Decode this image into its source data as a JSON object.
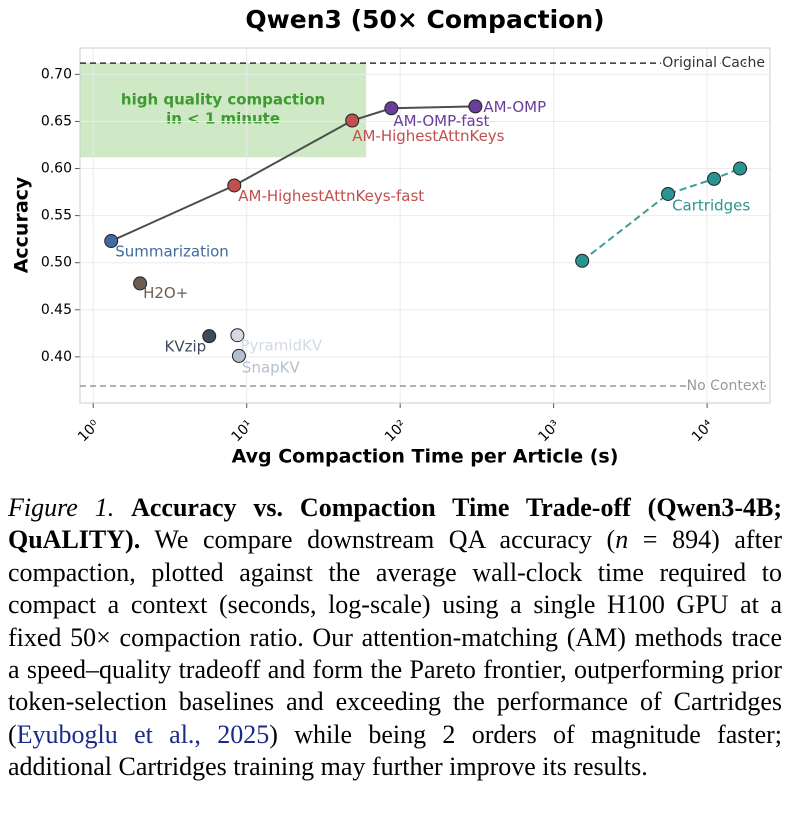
{
  "chart_data": {
    "type": "scatter",
    "title": "Qwen3 (50× Compaction)",
    "x_label": "Avg Compaction Time per Article (s)",
    "y_label": "Accuracy",
    "x_log": true,
    "grid": true,
    "xlim": [
      0.82,
      25700
    ],
    "ylim": [
      0.351,
      0.728
    ],
    "xticks": [
      {
        "value": 1,
        "label": "10⁰"
      },
      {
        "value": 10,
        "label": "10¹"
      },
      {
        "value": 100,
        "label": "10²"
      },
      {
        "value": 1000,
        "label": "10³"
      },
      {
        "value": 10000,
        "label": "10⁴"
      }
    ],
    "yticks": [
      {
        "value": 0.4,
        "label": "0.40"
      },
      0.45,
      {
        "value": 0.5,
        "label": "0.50"
      },
      0.55,
      {
        "value": 0.6,
        "label": "0.60"
      },
      0.65,
      {
        "value": 0.7,
        "label": "0.70"
      }
    ],
    "hlines": [
      {
        "y": 0.712,
        "label": "Original Cache",
        "color": "#333333"
      },
      {
        "y": 0.369,
        "label": "No Context",
        "color": "#999999"
      }
    ],
    "shaded_region": {
      "x": [
        0.82,
        60
      ],
      "y": [
        0.612,
        0.712
      ],
      "color": "#cfe8c6",
      "text_color": "#3c9a2e",
      "label": [
        "high quality compaction",
        "in < 1 minute"
      ]
    },
    "series": [
      {
        "labels": [
          "Summarization",
          "AM-HighestAttnKeys-fast",
          "AM-HighestAttnKeys",
          "AM-OMP-fast",
          "AM-OMP"
        ],
        "x": [
          1.31,
          8.3,
          48.7,
          87.6,
          309
        ],
        "values": [
          0.523,
          0.582,
          0.651,
          0.664,
          0.666
        ],
        "colors": [
          "#3f6b9e",
          "#c0504d",
          "#c0504d",
          "#6a3d9a",
          "#6a3d9a"
        ],
        "line": "solid",
        "line_color": "#4d4d4d"
      },
      {
        "labels": [
          "H2O+",
          "KVzip",
          "PyramidKV",
          "SnapKV"
        ],
        "x": [
          2.02,
          5.7,
          8.7,
          8.9
        ],
        "values": [
          0.478,
          0.422,
          0.423,
          0.401
        ],
        "colors": [
          "#6e5d4e",
          "#3e4a5e",
          "#d3dae4",
          "#b3bfcf"
        ],
        "line": "none"
      },
      {
        "labels": [
          null,
          "Cartridges",
          null,
          null
        ],
        "x": [
          1535,
          5570,
          11100,
          16400
        ],
        "values": [
          0.502,
          0.573,
          0.589,
          0.6
        ],
        "colors": [
          "#2a9590",
          "#2a9590",
          "#2a9590",
          "#2a9590"
        ],
        "line": "dashed",
        "line_color": "#3a9e99"
      }
    ]
  },
  "caption": {
    "label": "Figure 1.",
    "title": "Accuracy vs. Compaction Time Trade-off (Qwen3-4B; QuALITY).",
    "text": [
      "We compare downstream QA accuracy (",
      "n",
      " = 894) after compaction, plotted against the average wall-clock time required to compact a context (seconds, log-scale) using a single H100 GPU at a fixed 50× compaction ratio. Our attention-matching (AM) methods trace a speed–quality tradeoff and form the Pareto frontier, outperforming prior token-selection baselines and exceeding the performance of Cartridges (",
      "Eyuboglu et al., 2025",
      ") while being 2 orders of magnitude faster; additional Cartridges training may further improve its results."
    ]
  }
}
